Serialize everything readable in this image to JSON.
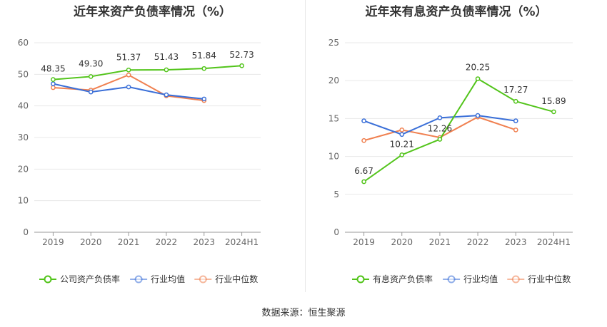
{
  "footer": {
    "source": "数据来源：恒生聚源"
  },
  "chart_data": [
    {
      "type": "line",
      "title": "近年来资产负债率情况（%）",
      "categories": [
        "2019",
        "2020",
        "2021",
        "2022",
        "2023",
        "2024H1"
      ],
      "ylim": [
        0,
        60
      ],
      "yticks": [
        0,
        10,
        20,
        30,
        40,
        50,
        60
      ],
      "grid": true,
      "legend_position": "bottom",
      "series": [
        {
          "name": "公司资产负债率",
          "color": "#52c41a",
          "values": [
            48.35,
            49.3,
            51.37,
            51.43,
            51.84,
            52.73
          ],
          "labeled": true
        },
        {
          "name": "行业均值",
          "color": "#3a6fd8",
          "values": [
            47.0,
            44.4,
            46.0,
            43.5,
            42.2,
            null
          ],
          "labeled": false
        },
        {
          "name": "行业中位数",
          "color": "#f08050",
          "values": [
            45.8,
            45.0,
            49.8,
            43.2,
            41.7,
            null
          ],
          "labeled": false
        }
      ],
      "data_labels": [
        "48.35",
        "49.30",
        "51.37",
        "51.43",
        "51.84",
        "52.73"
      ]
    },
    {
      "type": "line",
      "title": "近年来有息资产负债率情况（%）",
      "categories": [
        "2019",
        "2020",
        "2021",
        "2022",
        "2023",
        "2024H1"
      ],
      "ylim": [
        0,
        25
      ],
      "yticks": [
        0,
        5,
        10,
        15,
        20,
        25
      ],
      "grid": true,
      "legend_position": "bottom",
      "series": [
        {
          "name": "有息资产负债率",
          "color": "#52c41a",
          "values": [
            6.67,
            10.21,
            12.26,
            20.25,
            17.27,
            15.89
          ],
          "labeled": true
        },
        {
          "name": "行业均值",
          "color": "#3a6fd8",
          "values": [
            14.7,
            12.9,
            15.1,
            15.4,
            14.7,
            null
          ],
          "labeled": false
        },
        {
          "name": "行业中位数",
          "color": "#f08050",
          "values": [
            12.1,
            13.5,
            12.5,
            15.2,
            13.5,
            null
          ],
          "labeled": false
        }
      ],
      "data_labels": [
        "6.67",
        "10.21",
        "12.26",
        "20.25",
        "17.27",
        "15.89"
      ]
    }
  ]
}
